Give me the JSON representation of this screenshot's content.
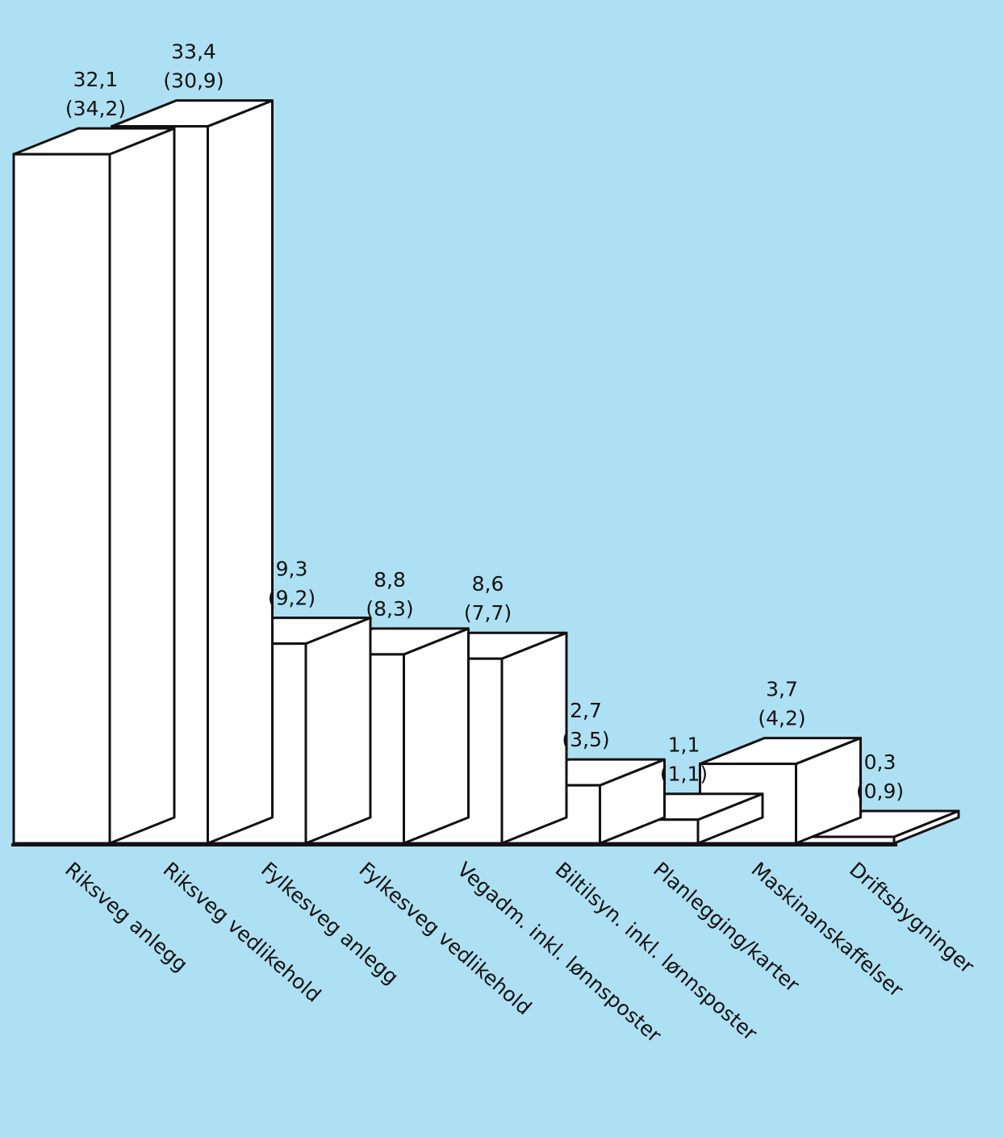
{
  "chart_data": {
    "type": "bar",
    "categories": [
      "Riksveg anlegg",
      "Riksveg vedlikehold",
      "Fylkesveg anlegg",
      "Fylkesveg vedlikehold",
      "Vegadm. inkl. lønnsposter",
      "Biltilsyn. inkl. lønnsposter",
      "Planlegging/karter",
      "Maskinanskaffelser",
      "Driftsbygninger"
    ],
    "series": [
      {
        "values": [
          32.1,
          33.4,
          9.3,
          8.8,
          8.6,
          2.7,
          1.1,
          3.7,
          0.3
        ]
      },
      {
        "values": [
          34.2,
          30.9,
          9.2,
          8.3,
          7.7,
          3.5,
          1.1,
          4.2,
          0.9
        ]
      }
    ],
    "value_labels": [
      "32,1",
      "33,4",
      "9,3",
      "8,8",
      "8,6",
      "2,7",
      "1,1",
      "3,7",
      "0,3"
    ],
    "secondary_labels": [
      "(34,2)",
      "(30,9)",
      "(9,2)",
      "(8,3)",
      "(7,7)",
      "(3,5)",
      "(1,1)",
      "(4,2)",
      "(0,9)"
    ],
    "ylim": [
      0,
      34
    ],
    "grid": false,
    "style": "3d",
    "colors": {
      "background": "#aee0f3",
      "bar_face": "#ffffff",
      "outline": "#111111"
    }
  }
}
